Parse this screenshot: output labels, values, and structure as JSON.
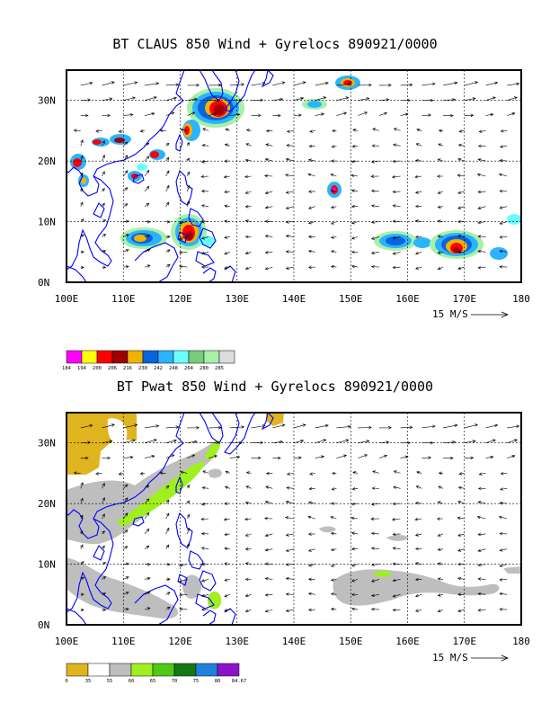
{
  "panel_top": {
    "title": "BT CLAUS 850 Wind + Gyrelocs 890921/0000",
    "lat_labels": [
      "30N",
      "20N",
      "10N",
      "0N"
    ],
    "lon_labels": [
      "100E",
      "110E",
      "120E",
      "130E",
      "140E",
      "150E",
      "160E",
      "170E",
      "180"
    ],
    "vector_scale_label": "15 M/S",
    "colorbar": {
      "labels": [
        "184",
        "194",
        "200",
        "206",
        "216",
        "230",
        "242",
        "248",
        "264",
        "280",
        "285"
      ],
      "colors": [
        "#ff00ff",
        "#ffff00",
        "#ff0000",
        "#a00000",
        "#f0b400",
        "#0a64dc",
        "#2ab4ff",
        "#6affff",
        "#7acb7a",
        "#a8f0a8",
        "#dcdcdc"
      ]
    }
  },
  "panel_bottom": {
    "title": "BT Pwat 850 Wind + Gyrelocs 890921/0000",
    "lat_labels": [
      "30N",
      "20N",
      "10N",
      "0N"
    ],
    "lon_labels": [
      "100E",
      "110E",
      "120E",
      "130E",
      "140E",
      "150E",
      "160E",
      "170E",
      "180"
    ],
    "vector_scale_label": "15 M/S",
    "colorbar": {
      "labels": [
        "0",
        "35",
        "55",
        "60",
        "65",
        "70",
        "75",
        "80",
        "84.67"
      ],
      "colors": [
        "#e0b41e",
        "#ffffff",
        "#bebebe",
        "#9ff01e",
        "#50c814",
        "#147814",
        "#1e82dc",
        "#8c14c8"
      ]
    }
  },
  "map_extent": {
    "lon": [
      100,
      180
    ],
    "lat": [
      0,
      35
    ]
  },
  "colors": {
    "coastline": "#0000ff",
    "frame": "#000000"
  }
}
